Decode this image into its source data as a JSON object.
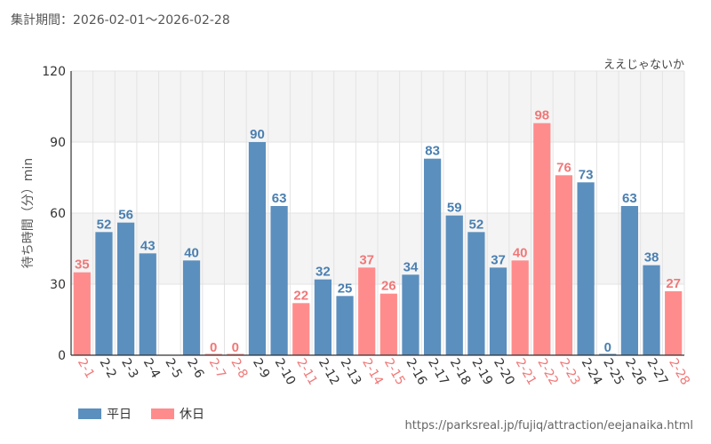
{
  "period_text": "集計期間：2026-02-01～2026-02-28",
  "url_text": "https://parksreal.jp/fujiq/attraction/eejanaika.html",
  "legend": [
    {
      "label": "平日",
      "color": "#5b8fbe"
    },
    {
      "label": "休日",
      "color": "#ff8c8c"
    }
  ],
  "chart_data": {
    "type": "bar",
    "title": "ええじゃないか",
    "xlabel": "",
    "ylabel": "待ち時間（分）min",
    "ylim": [
      0,
      120
    ],
    "yticks": [
      0,
      30,
      60,
      90,
      120
    ],
    "categories": [
      "2-1",
      "2-2",
      "2-3",
      "2-4",
      "2-5",
      "2-6",
      "2-7",
      "2-8",
      "2-9",
      "2-10",
      "2-11",
      "2-12",
      "2-13",
      "2-14",
      "2-15",
      "2-16",
      "2-17",
      "2-18",
      "2-19",
      "2-20",
      "2-21",
      "2-22",
      "2-23",
      "2-24",
      "2-25",
      "2-26",
      "2-27",
      "2-28"
    ],
    "values": [
      35,
      52,
      56,
      43,
      null,
      40,
      0,
      0,
      90,
      63,
      22,
      32,
      25,
      37,
      26,
      34,
      83,
      59,
      52,
      37,
      40,
      98,
      76,
      73,
      0,
      63,
      38,
      27
    ],
    "day_type": [
      "holiday",
      "weekday",
      "weekday",
      "weekday",
      "weekday",
      "weekday",
      "holiday",
      "holiday",
      "weekday",
      "weekday",
      "holiday",
      "weekday",
      "weekday",
      "holiday",
      "holiday",
      "weekday",
      "weekday",
      "weekday",
      "weekday",
      "weekday",
      "holiday",
      "holiday",
      "holiday",
      "weekday",
      "weekday",
      "weekday",
      "weekday",
      "holiday"
    ],
    "colors": {
      "weekday_bar": "#5b8fbe",
      "holiday_bar": "#ff8c8c",
      "weekday_label": "#4a7fb0",
      "holiday_label": "#f07878",
      "band": "#f4f4f4",
      "grid": "#e3e3e3",
      "axis": "#333333"
    }
  }
}
